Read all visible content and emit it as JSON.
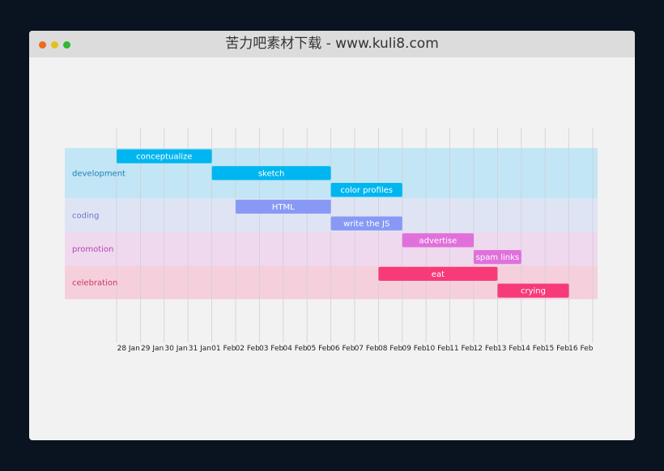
{
  "window": {
    "title": "苦力吧素材下载 - www.kuli8.com",
    "traffic_lights": [
      "close-dot",
      "minimize-dot",
      "maximize-dot"
    ]
  },
  "chart_data": {
    "type": "gantt",
    "title": "",
    "xlabel": "",
    "ylabel": "",
    "grid": true,
    "xlim": [
      "2015-01-28",
      "2015-02-17"
    ],
    "ticks": [
      "28 Jan",
      "29 Jan",
      "30 Jan",
      "31 Jan",
      "01 Feb",
      "02 Feb",
      "03 Feb",
      "04 Feb",
      "05 Feb",
      "06 Feb",
      "07 Feb",
      "08 Feb",
      "09 Feb",
      "10 Feb",
      "11 Feb",
      "12 Feb",
      "13 Feb",
      "14 Feb",
      "15 Feb",
      "16 Feb"
    ],
    "lanes": [
      {
        "name": "development",
        "label_color": "#1f7fb0",
        "band_color": "#c2e6f5",
        "bar_color": "#00b6f0"
      },
      {
        "name": "coding",
        "label_color": "#6b78c8",
        "band_color": "#dfe4f5",
        "bar_color": "#8899f5"
      },
      {
        "name": "promotion",
        "label_color": "#b548b0",
        "band_color": "#efd9ee",
        "bar_color": "#e070dc"
      },
      {
        "name": "celebration",
        "label_color": "#c8375f",
        "band_color": "#f5d0dc",
        "bar_color": "#f73a78"
      }
    ],
    "tasks": [
      {
        "name": "conceptualize",
        "lane": 0,
        "row": 0,
        "start": 0,
        "end": 4
      },
      {
        "name": "sketch",
        "lane": 0,
        "row": 1,
        "start": 4,
        "end": 9
      },
      {
        "name": "color profiles",
        "lane": 0,
        "row": 2,
        "start": 9,
        "end": 12
      },
      {
        "name": "HTML",
        "lane": 1,
        "row": 0,
        "start": 5,
        "end": 9
      },
      {
        "name": "write the JS",
        "lane": 1,
        "row": 1,
        "start": 9,
        "end": 12
      },
      {
        "name": "advertise",
        "lane": 2,
        "row": 0,
        "start": 12,
        "end": 15
      },
      {
        "name": "spam links",
        "lane": 2,
        "row": 1,
        "start": 15,
        "end": 17
      },
      {
        "name": "eat",
        "lane": 3,
        "row": 0,
        "start": 11,
        "end": 16
      },
      {
        "name": "crying",
        "lane": 3,
        "row": 1,
        "start": 16,
        "end": 19
      }
    ]
  }
}
